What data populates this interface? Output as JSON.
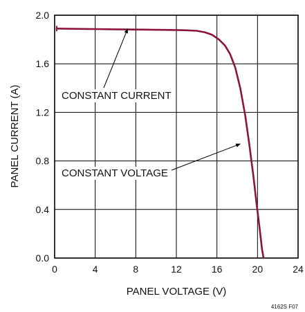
{
  "chart_data": {
    "type": "line",
    "xlabel": "PANEL VOLTAGE (V)",
    "ylabel": "PANEL CURRENT (A)",
    "xlim": [
      0,
      24
    ],
    "ylim": [
      0,
      2.0
    ],
    "x_ticks": [
      "0",
      "4",
      "8",
      "12",
      "16",
      "20",
      "24"
    ],
    "y_ticks": [
      "0.0",
      "0.4",
      "0.8",
      "1.2",
      "1.6",
      "2.0"
    ],
    "grid": true,
    "line_color": "#8B1538",
    "series": [
      {
        "x": [
          0.2,
          2,
          4,
          6,
          8,
          10,
          12,
          13,
          14,
          14.8,
          15.5,
          16.2,
          16.8,
          17.3,
          17.8,
          18.3,
          18.8,
          19.2,
          19.6,
          19.9,
          20.2,
          20.45,
          20.6
        ],
        "y": [
          1.89,
          1.888,
          1.886,
          1.884,
          1.882,
          1.88,
          1.878,
          1.876,
          1.872,
          1.86,
          1.84,
          1.8,
          1.75,
          1.68,
          1.57,
          1.4,
          1.17,
          0.93,
          0.67,
          0.45,
          0.25,
          0.07,
          0.0
        ]
      }
    ],
    "annotations": [
      {
        "text": "CONSTANT CURRENT",
        "point": [
          7.2,
          1.888
        ]
      },
      {
        "text": "CONSTANT VOLTAGE",
        "point": [
          18.3,
          0.94
        ]
      }
    ]
  },
  "figure_id": "4162S F07"
}
